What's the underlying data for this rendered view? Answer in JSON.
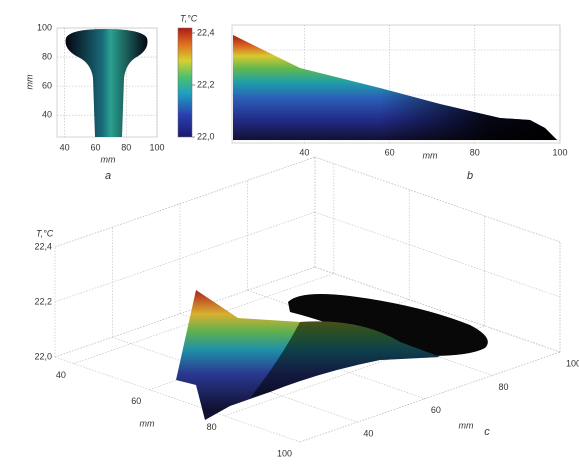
{
  "chart_data": [
    {
      "type": "heatmap",
      "caption": "a",
      "xlabel": "mm",
      "ylabel": "mm",
      "xlim": [
        35,
        100
      ],
      "xticks": [
        40,
        60,
        80,
        100
      ],
      "ylim": [
        25,
        100
      ],
      "yticks": [
        40,
        60,
        80,
        100
      ]
    },
    {
      "type": "surface",
      "caption": "b",
      "xlabel": "mm",
      "xlim": [
        23,
        100
      ],
      "xticks": [
        40,
        60,
        80,
        100
      ],
      "colorbar_title": "T,°C",
      "clim": [
        22,
        22.4
      ],
      "cticks": [
        {
          "value": 22,
          "label": "22,0"
        },
        {
          "value": 22.2,
          "label": "22,2"
        },
        {
          "value": 22.4,
          "label": "22,4"
        }
      ]
    },
    {
      "type": "surface3d",
      "caption": "c",
      "zlabel": "T,°C",
      "xlabel": "mm",
      "ylabel": "mm",
      "xlim": [
        35,
        100
      ],
      "xticks": [
        40,
        60,
        80,
        100
      ],
      "ylim": [
        23,
        100
      ],
      "yticks": [
        40,
        60,
        80,
        100
      ],
      "zlim": [
        22,
        22.4
      ],
      "zticks": [
        {
          "value": 22,
          "label": "22,0"
        },
        {
          "value": 22.2,
          "label": "22,2"
        },
        {
          "value": 22.4,
          "label": "22,4"
        }
      ]
    }
  ]
}
